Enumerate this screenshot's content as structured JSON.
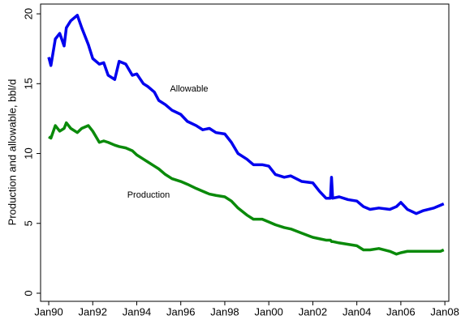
{
  "chart_data": {
    "type": "line",
    "y_label": "Production and allowable, bbl/d",
    "annotations": [
      "Allowable",
      "Production"
    ],
    "x": [
      1990,
      1990.1,
      1990.3,
      1990.5,
      1990.7,
      1990.8,
      1991,
      1991.3,
      1991.5,
      1991.8,
      1992,
      1992.3,
      1992.5,
      1992.7,
      1993,
      1993.2,
      1993.5,
      1993.8,
      1994,
      1994.3,
      1994.5,
      1994.8,
      1995,
      1995.3,
      1995.6,
      1996,
      1996.3,
      1996.7,
      1997,
      1997.3,
      1997.6,
      1998,
      1998.3,
      1998.6,
      1999,
      1999.3,
      1999.7,
      2000,
      2000.3,
      2000.7,
      2001,
      2001.5,
      2002,
      2002.3,
      2002.6,
      2002.8,
      2002.85,
      2002.9,
      2003.2,
      2003.6,
      2004,
      2004.3,
      2004.6,
      2005,
      2005.5,
      2005.8,
      2006,
      2006.3,
      2006.7,
      2007,
      2007.5,
      2007.8,
      2007.95
    ],
    "series": [
      {
        "name": "Allowable",
        "color": "#0000ee",
        "values": [
          16.9,
          16.3,
          18.2,
          18.6,
          17.7,
          19.0,
          19.5,
          19.9,
          19.0,
          17.8,
          16.8,
          16.4,
          16.5,
          15.6,
          15.3,
          16.6,
          16.4,
          15.6,
          15.7,
          15.0,
          14.8,
          14.4,
          13.8,
          13.5,
          13.1,
          12.8,
          12.3,
          12.0,
          11.7,
          11.8,
          11.5,
          11.4,
          10.8,
          10.0,
          9.6,
          9.2,
          9.2,
          9.1,
          8.5,
          8.3,
          8.4,
          8.0,
          7.9,
          7.3,
          6.8,
          6.8,
          8.3,
          6.8,
          6.9,
          6.7,
          6.6,
          6.2,
          6.0,
          6.1,
          6.0,
          6.2,
          6.5,
          6.0,
          5.7,
          5.9,
          6.1,
          6.3,
          6.4
        ]
      },
      {
        "name": "Production",
        "color": "#0a8a0a",
        "values": [
          11.2,
          11.1,
          12.0,
          11.6,
          11.8,
          12.2,
          11.8,
          11.5,
          11.8,
          12.0,
          11.6,
          10.8,
          10.9,
          10.8,
          10.6,
          10.5,
          10.4,
          10.2,
          9.9,
          9.6,
          9.4,
          9.1,
          8.9,
          8.5,
          8.2,
          8.0,
          7.8,
          7.5,
          7.3,
          7.1,
          7.0,
          6.9,
          6.6,
          6.1,
          5.6,
          5.3,
          5.3,
          5.1,
          4.9,
          4.7,
          4.6,
          4.3,
          4.0,
          3.9,
          3.8,
          3.8,
          3.7,
          3.7,
          3.6,
          3.5,
          3.4,
          3.1,
          3.1,
          3.2,
          3.0,
          2.8,
          2.9,
          3.0,
          3.0,
          3.0,
          3.0,
          3.0,
          3.1
        ]
      }
    ],
    "xlim": [
      1989.63,
      2008.18
    ],
    "ylim": [
      -0.58,
      20.7
    ],
    "xticks": [
      {
        "value": 1990,
        "label": "Jan90"
      },
      {
        "value": 1992,
        "label": "Jan92"
      },
      {
        "value": 1994,
        "label": "Jan94"
      },
      {
        "value": 1996,
        "label": "Jan96"
      },
      {
        "value": 1998,
        "label": "Jan98"
      },
      {
        "value": 2000,
        "label": "Jan00"
      },
      {
        "value": 2002,
        "label": "Jan02"
      },
      {
        "value": 2004,
        "label": "Jan04"
      },
      {
        "value": 2006,
        "label": "Jan06"
      },
      {
        "value": 2008,
        "label": "Jan08"
      }
    ],
    "yticks": [
      0,
      5,
      10,
      15,
      20
    ],
    "grid": false
  }
}
